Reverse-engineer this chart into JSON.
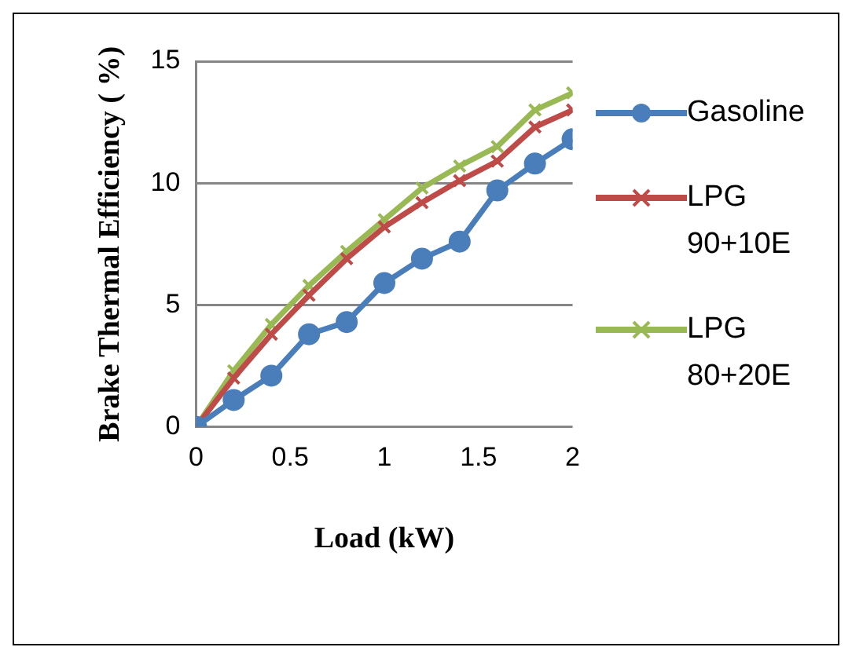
{
  "chart_data": {
    "type": "line",
    "xlabel": "Load (kW)",
    "ylabel": "Brake Thermal Efficiency ( %)",
    "x": [
      0,
      0.2,
      0.4,
      0.6,
      0.8,
      1.0,
      1.2,
      1.4,
      1.6,
      1.8,
      2.0
    ],
    "series": [
      {
        "name": "Gasoline",
        "color": "#4a7ebb",
        "marker": "circle",
        "values": [
          0,
          1.1,
          2.1,
          3.8,
          4.3,
          5.9,
          6.9,
          7.6,
          9.7,
          10.8,
          11.8
        ]
      },
      {
        "name": "LPG 90+10E",
        "color": "#be4b48",
        "marker": "cross",
        "values": [
          0,
          2.0,
          3.8,
          5.4,
          6.9,
          8.2,
          9.2,
          10.1,
          10.9,
          12.3,
          13.0
        ]
      },
      {
        "name": "LPG 80+20E",
        "color": "#98b954",
        "marker": "cross",
        "values": [
          0,
          2.3,
          4.2,
          5.8,
          7.2,
          8.5,
          9.8,
          10.7,
          11.5,
          13.0,
          13.7
        ]
      }
    ],
    "xlim": [
      0,
      2
    ],
    "xticks": [
      0,
      0.5,
      1,
      1.5,
      2
    ],
    "ylim": [
      0,
      15
    ],
    "yticks": [
      0,
      5,
      10,
      15
    ],
    "grid": "y",
    "legend": "right",
    "line_style": "solid"
  }
}
